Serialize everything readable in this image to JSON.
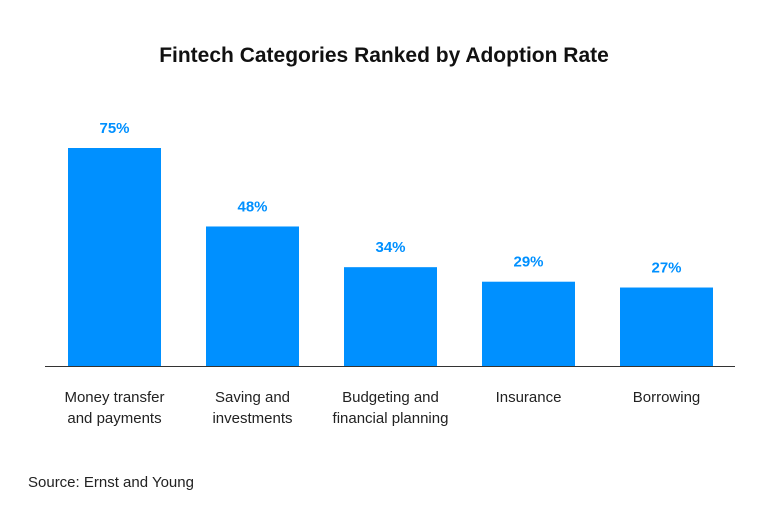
{
  "chart_data": {
    "type": "bar",
    "title": "Fintech Categories Ranked by Adoption Rate",
    "categories": [
      [
        "Money transfer",
        "and payments"
      ],
      [
        "Saving and",
        "investments"
      ],
      [
        "Budgeting and",
        "financial planning"
      ],
      [
        "Insurance"
      ],
      [
        "Borrowing"
      ]
    ],
    "values": [
      75,
      48,
      34,
      29,
      27
    ],
    "value_labels": [
      "75%",
      "48%",
      "34%",
      "29%",
      "27%"
    ],
    "xlabel": "",
    "ylabel": "",
    "ylim": [
      0,
      75
    ],
    "grid": false,
    "bar_color": "#0090ff",
    "label_color": "#0090ff"
  },
  "source": "Source: Ernst and Young"
}
